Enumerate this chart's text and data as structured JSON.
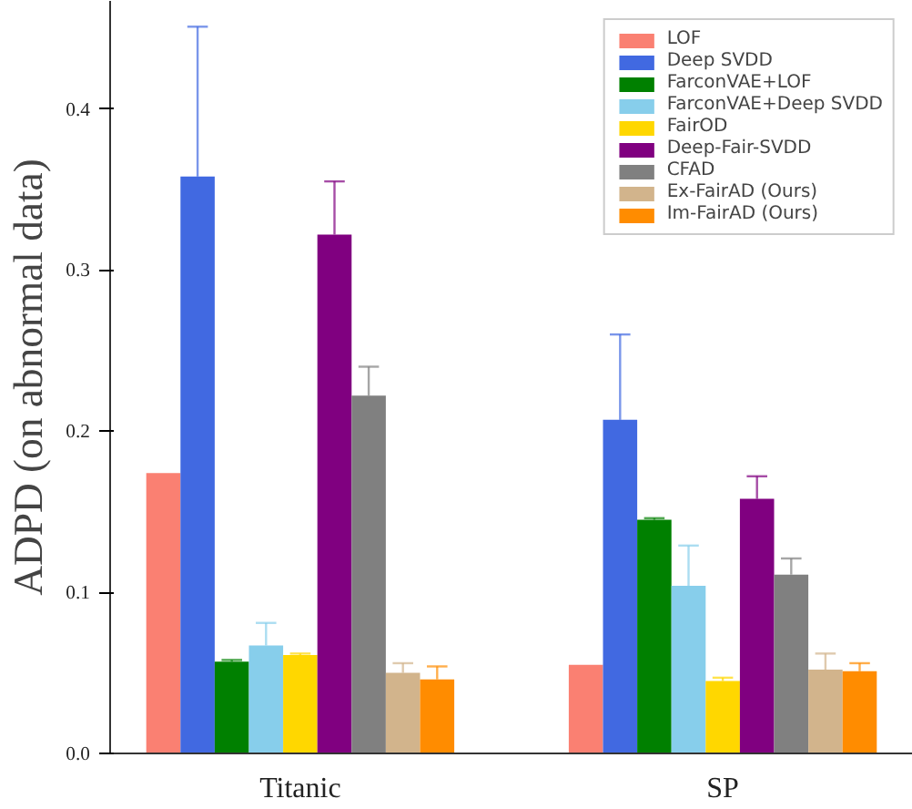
{
  "chart_data": {
    "type": "bar",
    "ylabel": "ADPD (on abnormal data)",
    "categories": [
      "Titanic",
      "SP"
    ],
    "ylim": [
      0,
      0.467
    ],
    "yticks": [
      {
        "value": 0,
        "label": "0.0"
      },
      0.1,
      0.2,
      0.3,
      0.4
    ],
    "grid": false,
    "legend": "top right",
    "series": [
      {
        "name": "LOF",
        "color": "#fa8072",
        "values": [
          0.174,
          0.055
        ],
        "errors": [
          null,
          null
        ]
      },
      {
        "name": "Deep SVDD",
        "color": "#4169e1",
        "values": [
          0.358,
          0.207
        ],
        "errors": [
          [
            0.358,
            0.451
          ],
          [
            0.207,
            0.26
          ]
        ]
      },
      {
        "name": "FarconVAE+LOF",
        "color": "#008000",
        "values": [
          0.057,
          0.145
        ],
        "errors": [
          [
            0.057,
            0.058
          ],
          [
            0.145,
            0.146
          ]
        ]
      },
      {
        "name": "FarconVAE+Deep SVDD",
        "color": "#87ceeb",
        "values": [
          0.067,
          0.104
        ],
        "errors": [
          [
            0.067,
            0.081
          ],
          [
            0.104,
            0.129
          ]
        ]
      },
      {
        "name": "FairOD",
        "color": "#ffd700",
        "values": [
          0.061,
          0.045
        ],
        "errors": [
          [
            0.061,
            0.062
          ],
          [
            0.045,
            0.047
          ]
        ]
      },
      {
        "name": "Deep-Fair-SVDD",
        "color": "#800080",
        "values": [
          0.322,
          0.158
        ],
        "errors": [
          [
            0.322,
            0.355
          ],
          [
            0.158,
            0.172
          ]
        ]
      },
      {
        "name": "CFAD",
        "color": "#808080",
        "values": [
          0.222,
          0.111
        ],
        "errors": [
          [
            0.222,
            0.24
          ],
          [
            0.111,
            0.121
          ]
        ]
      },
      {
        "name": "Ex-FairAD (Ours)",
        "color": "#d2b48c",
        "values": [
          0.05,
          0.052
        ],
        "errors": [
          [
            0.05,
            0.056
          ],
          [
            0.052,
            0.062
          ]
        ]
      },
      {
        "name": "Im-FairAD (Ours)",
        "color": "#ff8c00",
        "values": [
          0.046,
          0.051
        ],
        "errors": [
          [
            0.046,
            0.054
          ],
          [
            0.051,
            0.056
          ]
        ]
      }
    ]
  }
}
